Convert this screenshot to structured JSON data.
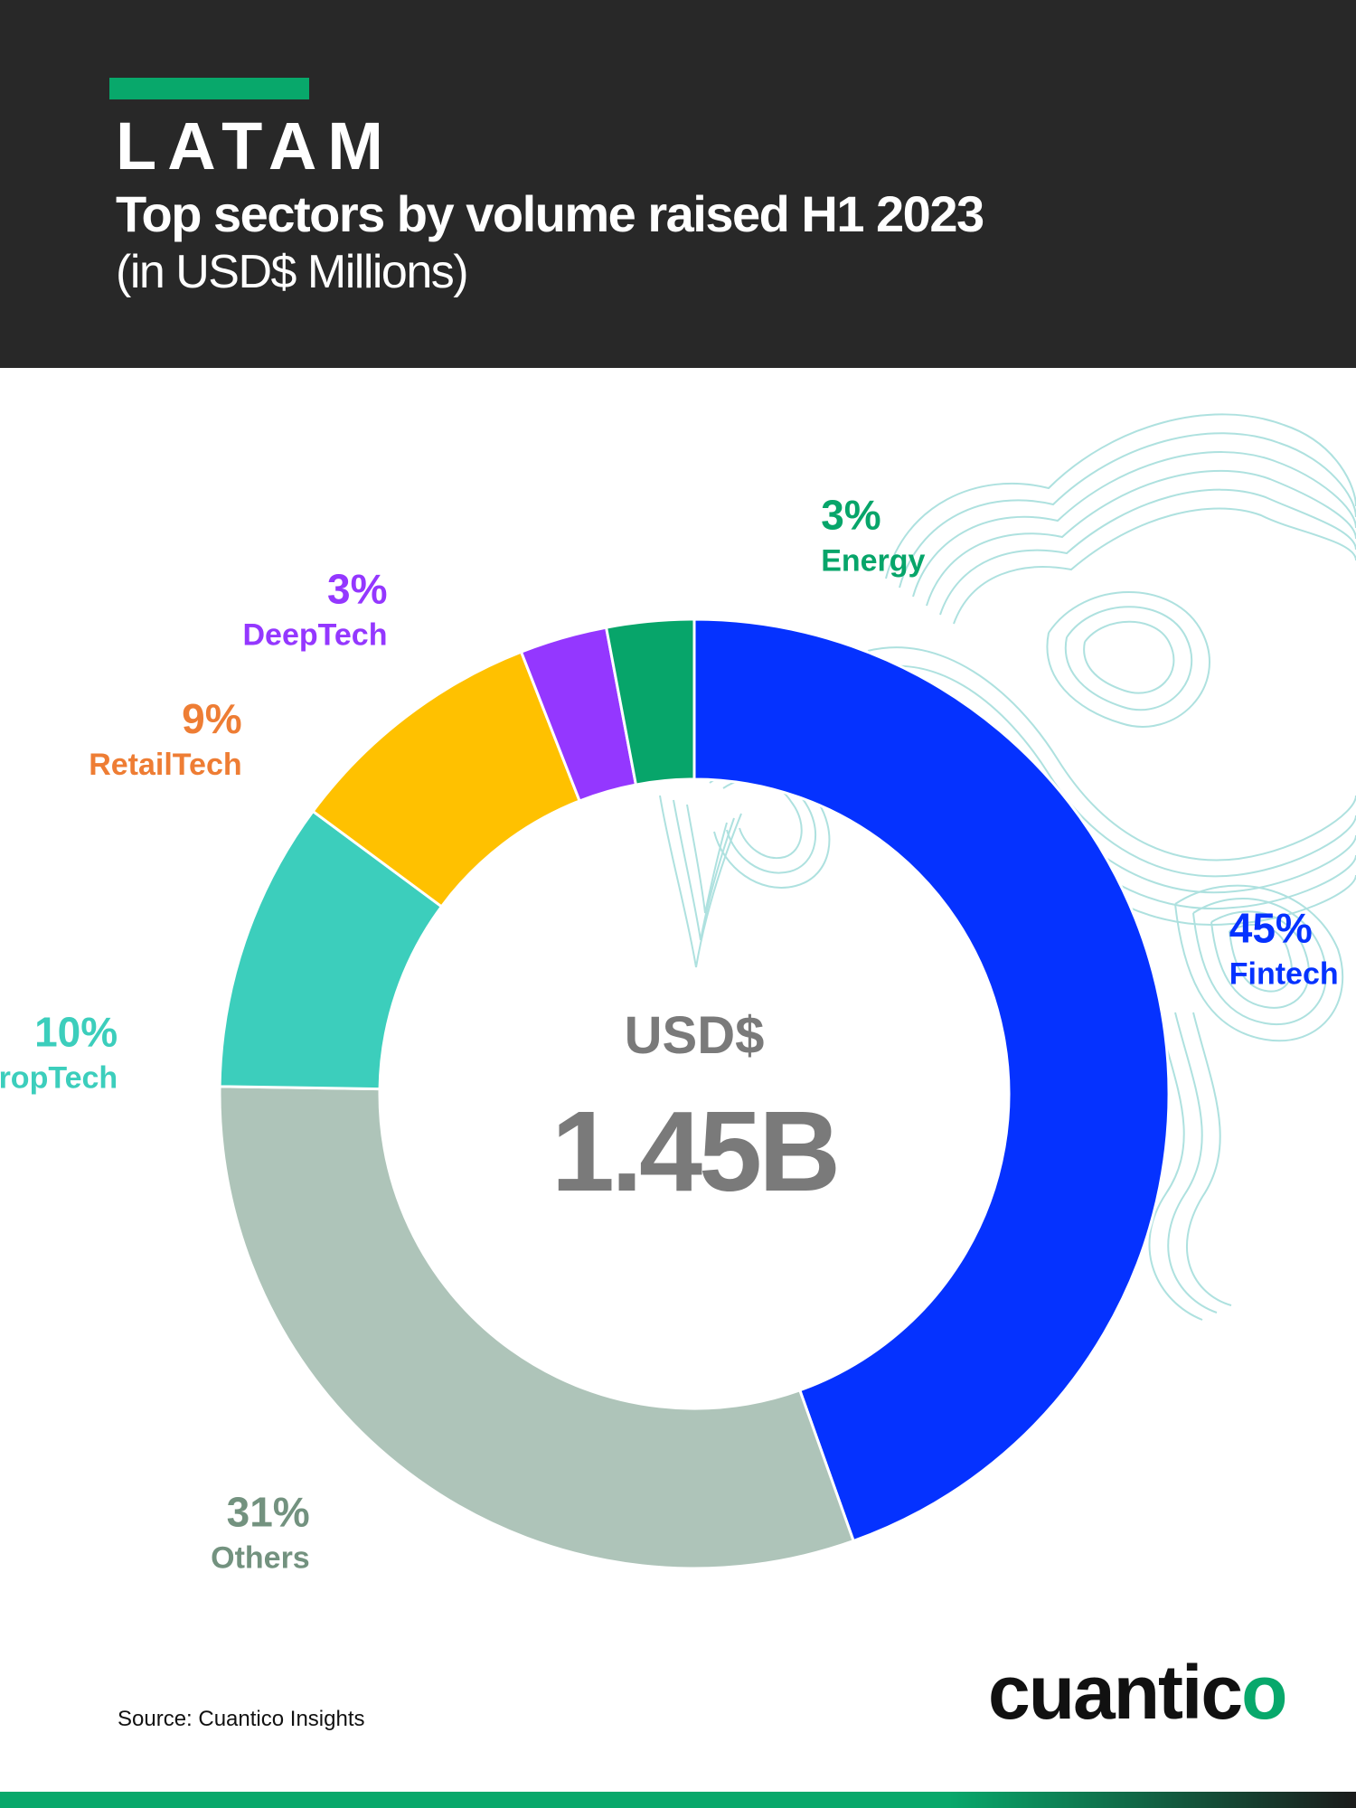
{
  "header": {
    "kicker": "LATAM",
    "title": "Top sectors by volume raised H1 2023",
    "subtitle": "(in USD$ Millions)"
  },
  "chart_data": {
    "type": "pie",
    "variant": "donut",
    "total_label": "USD$",
    "total_value": "1.45B",
    "slices": [
      {
        "name": "Fintech",
        "value": 45,
        "label": "45%",
        "color": "#0532ff"
      },
      {
        "name": "Others",
        "value": 31,
        "label": "31%",
        "color": "#aec4b9",
        "label_color": "#73927f"
      },
      {
        "name": "PropTech",
        "value": 10,
        "label": "10%",
        "color": "#3ccebc"
      },
      {
        "name": "RetailTech",
        "value": 9,
        "label": "9%",
        "color": "#ffc100",
        "label_color": "#ee7d34"
      },
      {
        "name": "DeepTech",
        "value": 3,
        "label": "3%",
        "color": "#9437ff"
      },
      {
        "name": "Energy",
        "value": 3,
        "label": "3%",
        "color": "#07a56a"
      }
    ]
  },
  "footer": {
    "source": "Source: Cuantico Insights",
    "logo_main": "cuantic",
    "logo_accent": "o"
  },
  "colors": {
    "header_bg": "#282828",
    "accent": "#08a86b",
    "total_text": "#7a7a7a",
    "contour_lines": "#9adad8"
  }
}
